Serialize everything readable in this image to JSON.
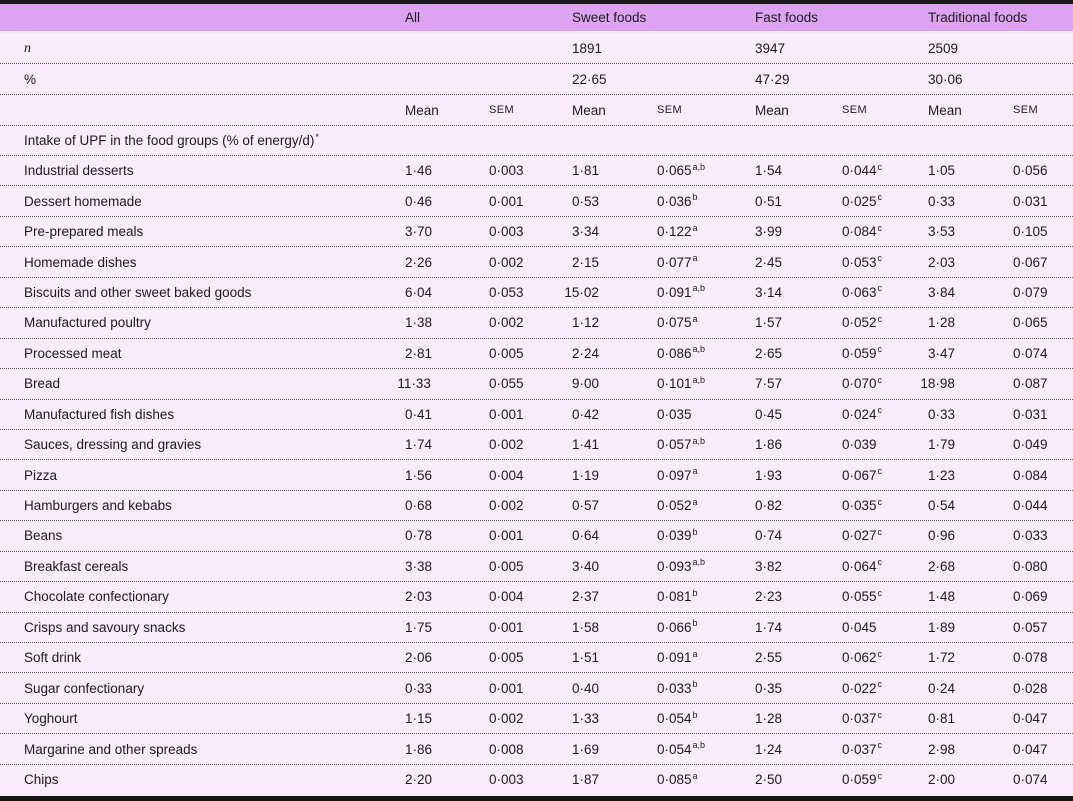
{
  "colors": {
    "header_band": "#dca3f1",
    "body_background": "#f8ecfb",
    "rule_black": "#1a1a1a",
    "text": "#1c1c1c"
  },
  "table": {
    "group_headers": [
      "All",
      "Sweet foods",
      "Fast foods",
      "Traditional foods"
    ],
    "n_label": "n",
    "n_values": [
      "1891",
      "3947",
      "2509"
    ],
    "pct_label": "%",
    "pct_values": [
      "22·65",
      "47·29",
      "30·06"
    ],
    "subheader": {
      "mean": "Mean",
      "sem": "SEM"
    },
    "section_header": "Intake of UPF in the food groups (% of energy/d)",
    "section_header_sup": "*",
    "rows": [
      {
        "label": "Industrial desserts",
        "cells": [
          {
            "v": "1·46"
          },
          {
            "v": "0·003"
          },
          {
            "v": "1·81"
          },
          {
            "v": "0·065",
            "sup": "a,b"
          },
          {
            "v": "1·54"
          },
          {
            "v": "0·044",
            "sup": "c"
          },
          {
            "v": "1·05"
          },
          {
            "v": "0·056"
          }
        ]
      },
      {
        "label": "Dessert homemade",
        "cells": [
          {
            "v": "0·46"
          },
          {
            "v": "0·001"
          },
          {
            "v": "0·53"
          },
          {
            "v": "0·036",
            "sup": "b"
          },
          {
            "v": "0·51"
          },
          {
            "v": "0·025",
            "sup": "c"
          },
          {
            "v": "0·33"
          },
          {
            "v": "0·031"
          }
        ]
      },
      {
        "label": "Pre-prepared meals",
        "cells": [
          {
            "v": "3·70"
          },
          {
            "v": "0·003"
          },
          {
            "v": "3·34"
          },
          {
            "v": "0·122",
            "sup": "a"
          },
          {
            "v": "3·99"
          },
          {
            "v": "0·084",
            "sup": "c"
          },
          {
            "v": "3·53"
          },
          {
            "v": "0·105"
          }
        ]
      },
      {
        "label": "Homemade dishes",
        "cells": [
          {
            "v": "2·26"
          },
          {
            "v": "0·002"
          },
          {
            "v": "2·15"
          },
          {
            "v": "0·077",
            "sup": "a"
          },
          {
            "v": "2·45"
          },
          {
            "v": "0·053",
            "sup": "c"
          },
          {
            "v": "2·03"
          },
          {
            "v": "0·067"
          }
        ]
      },
      {
        "label": "Biscuits and other sweet baked goods",
        "cells": [
          {
            "v": "6·04"
          },
          {
            "v": "0·053"
          },
          {
            "v": "15·02"
          },
          {
            "v": "0·091",
            "sup": "a,b"
          },
          {
            "v": "3·14"
          },
          {
            "v": "0·063",
            "sup": "c"
          },
          {
            "v": "3·84"
          },
          {
            "v": "0·079"
          }
        ]
      },
      {
        "label": "Manufactured poultry",
        "cells": [
          {
            "v": "1·38"
          },
          {
            "v": "0·002"
          },
          {
            "v": "1·12"
          },
          {
            "v": "0·075",
            "sup": "a"
          },
          {
            "v": "1·57"
          },
          {
            "v": "0·052",
            "sup": "c"
          },
          {
            "v": "1·28"
          },
          {
            "v": "0·065"
          }
        ]
      },
      {
        "label": "Processed meat",
        "cells": [
          {
            "v": "2·81"
          },
          {
            "v": "0·005"
          },
          {
            "v": "2·24"
          },
          {
            "v": "0·086",
            "sup": "a,b"
          },
          {
            "v": "2·65"
          },
          {
            "v": "0·059",
            "sup": "c"
          },
          {
            "v": "3·47"
          },
          {
            "v": "0·074"
          }
        ]
      },
      {
        "label": "Bread",
        "cells": [
          {
            "v": "11·33"
          },
          {
            "v": "0·055"
          },
          {
            "v": "9·00"
          },
          {
            "v": "0·101",
            "sup": "a,b"
          },
          {
            "v": "7·57"
          },
          {
            "v": "0·070",
            "sup": "c"
          },
          {
            "v": "18·98"
          },
          {
            "v": "0·087"
          }
        ]
      },
      {
        "label": "Manufactured fish dishes",
        "cells": [
          {
            "v": "0·41"
          },
          {
            "v": "0·001"
          },
          {
            "v": "0·42"
          },
          {
            "v": "0·035"
          },
          {
            "v": "0·45"
          },
          {
            "v": "0·024",
            "sup": "c"
          },
          {
            "v": "0·33"
          },
          {
            "v": "0·031"
          }
        ]
      },
      {
        "label": "Sauces, dressing and gravies",
        "cells": [
          {
            "v": "1·74"
          },
          {
            "v": "0·002"
          },
          {
            "v": "1·41"
          },
          {
            "v": "0·057",
            "sup": "a,b"
          },
          {
            "v": "1·86"
          },
          {
            "v": "0·039"
          },
          {
            "v": "1·79"
          },
          {
            "v": "0·049"
          }
        ]
      },
      {
        "label": "Pizza",
        "cells": [
          {
            "v": "1·56"
          },
          {
            "v": "0·004"
          },
          {
            "v": "1·19"
          },
          {
            "v": "0·097",
            "sup": "a"
          },
          {
            "v": "1·93"
          },
          {
            "v": "0·067",
            "sup": "c"
          },
          {
            "v": "1·23"
          },
          {
            "v": "0·084"
          }
        ]
      },
      {
        "label": "Hamburgers and kebabs",
        "cells": [
          {
            "v": "0·68"
          },
          {
            "v": "0·002"
          },
          {
            "v": "0·57"
          },
          {
            "v": "0·052",
            "sup": "a"
          },
          {
            "v": "0·82"
          },
          {
            "v": "0·035",
            "sup": "c"
          },
          {
            "v": "0·54"
          },
          {
            "v": "0·044"
          }
        ]
      },
      {
        "label": "Beans",
        "cells": [
          {
            "v": "0·78"
          },
          {
            "v": "0·001"
          },
          {
            "v": "0·64"
          },
          {
            "v": "0·039",
            "sup": "b"
          },
          {
            "v": "0·74"
          },
          {
            "v": "0·027",
            "sup": "c"
          },
          {
            "v": "0·96"
          },
          {
            "v": "0·033"
          }
        ]
      },
      {
        "label": "Breakfast cereals",
        "cells": [
          {
            "v": "3·38"
          },
          {
            "v": "0·005"
          },
          {
            "v": "3·40"
          },
          {
            "v": "0·093",
            "sup": "a,b"
          },
          {
            "v": "3·82"
          },
          {
            "v": "0·064",
            "sup": "c"
          },
          {
            "v": "2·68"
          },
          {
            "v": "0·080"
          }
        ]
      },
      {
        "label": "Chocolate confectionary",
        "cells": [
          {
            "v": "2·03"
          },
          {
            "v": "0·004"
          },
          {
            "v": "2·37"
          },
          {
            "v": "0·081",
            "sup": "b"
          },
          {
            "v": "2·23"
          },
          {
            "v": "0·055",
            "sup": "c"
          },
          {
            "v": "1·48"
          },
          {
            "v": "0·069"
          }
        ]
      },
      {
        "label": "Crisps and savoury snacks",
        "cells": [
          {
            "v": "1·75"
          },
          {
            "v": "0·001"
          },
          {
            "v": "1·58"
          },
          {
            "v": "0·066",
            "sup": "b"
          },
          {
            "v": "1·74"
          },
          {
            "v": "0·045"
          },
          {
            "v": "1·89"
          },
          {
            "v": "0·057"
          }
        ]
      },
      {
        "label": "Soft drink",
        "cells": [
          {
            "v": "2·06"
          },
          {
            "v": "0·005"
          },
          {
            "v": "1·51"
          },
          {
            "v": "0·091",
            "sup": "a"
          },
          {
            "v": "2·55"
          },
          {
            "v": "0·062",
            "sup": "c"
          },
          {
            "v": "1·72"
          },
          {
            "v": "0·078"
          }
        ]
      },
      {
        "label": "Sugar confectionary",
        "cells": [
          {
            "v": "0·33"
          },
          {
            "v": "0·001"
          },
          {
            "v": "0·40"
          },
          {
            "v": "0·033",
            "sup": "b"
          },
          {
            "v": "0·35"
          },
          {
            "v": "0·022",
            "sup": "c"
          },
          {
            "v": "0·24"
          },
          {
            "v": "0·028"
          }
        ]
      },
      {
        "label": "Yoghourt",
        "cells": [
          {
            "v": "1·15"
          },
          {
            "v": "0·002"
          },
          {
            "v": "1·33"
          },
          {
            "v": "0·054",
            "sup": "b"
          },
          {
            "v": "1·28"
          },
          {
            "v": "0·037",
            "sup": "c"
          },
          {
            "v": "0·81"
          },
          {
            "v": "0·047"
          }
        ]
      },
      {
        "label": "Margarine and other spreads",
        "cells": [
          {
            "v": "1·86"
          },
          {
            "v": "0·008"
          },
          {
            "v": "1·69"
          },
          {
            "v": "0·054",
            "sup": "a,b"
          },
          {
            "v": "1·24"
          },
          {
            "v": "0·037",
            "sup": "c"
          },
          {
            "v": "2·98"
          },
          {
            "v": "0·047"
          }
        ]
      },
      {
        "label": "Chips",
        "cells": [
          {
            "v": "2·20"
          },
          {
            "v": "0·003"
          },
          {
            "v": "1·87"
          },
          {
            "v": "0·085",
            "sup": "a"
          },
          {
            "v": "2·50"
          },
          {
            "v": "0·059",
            "sup": "c"
          },
          {
            "v": "2·00"
          },
          {
            "v": "0·074"
          }
        ]
      }
    ]
  }
}
